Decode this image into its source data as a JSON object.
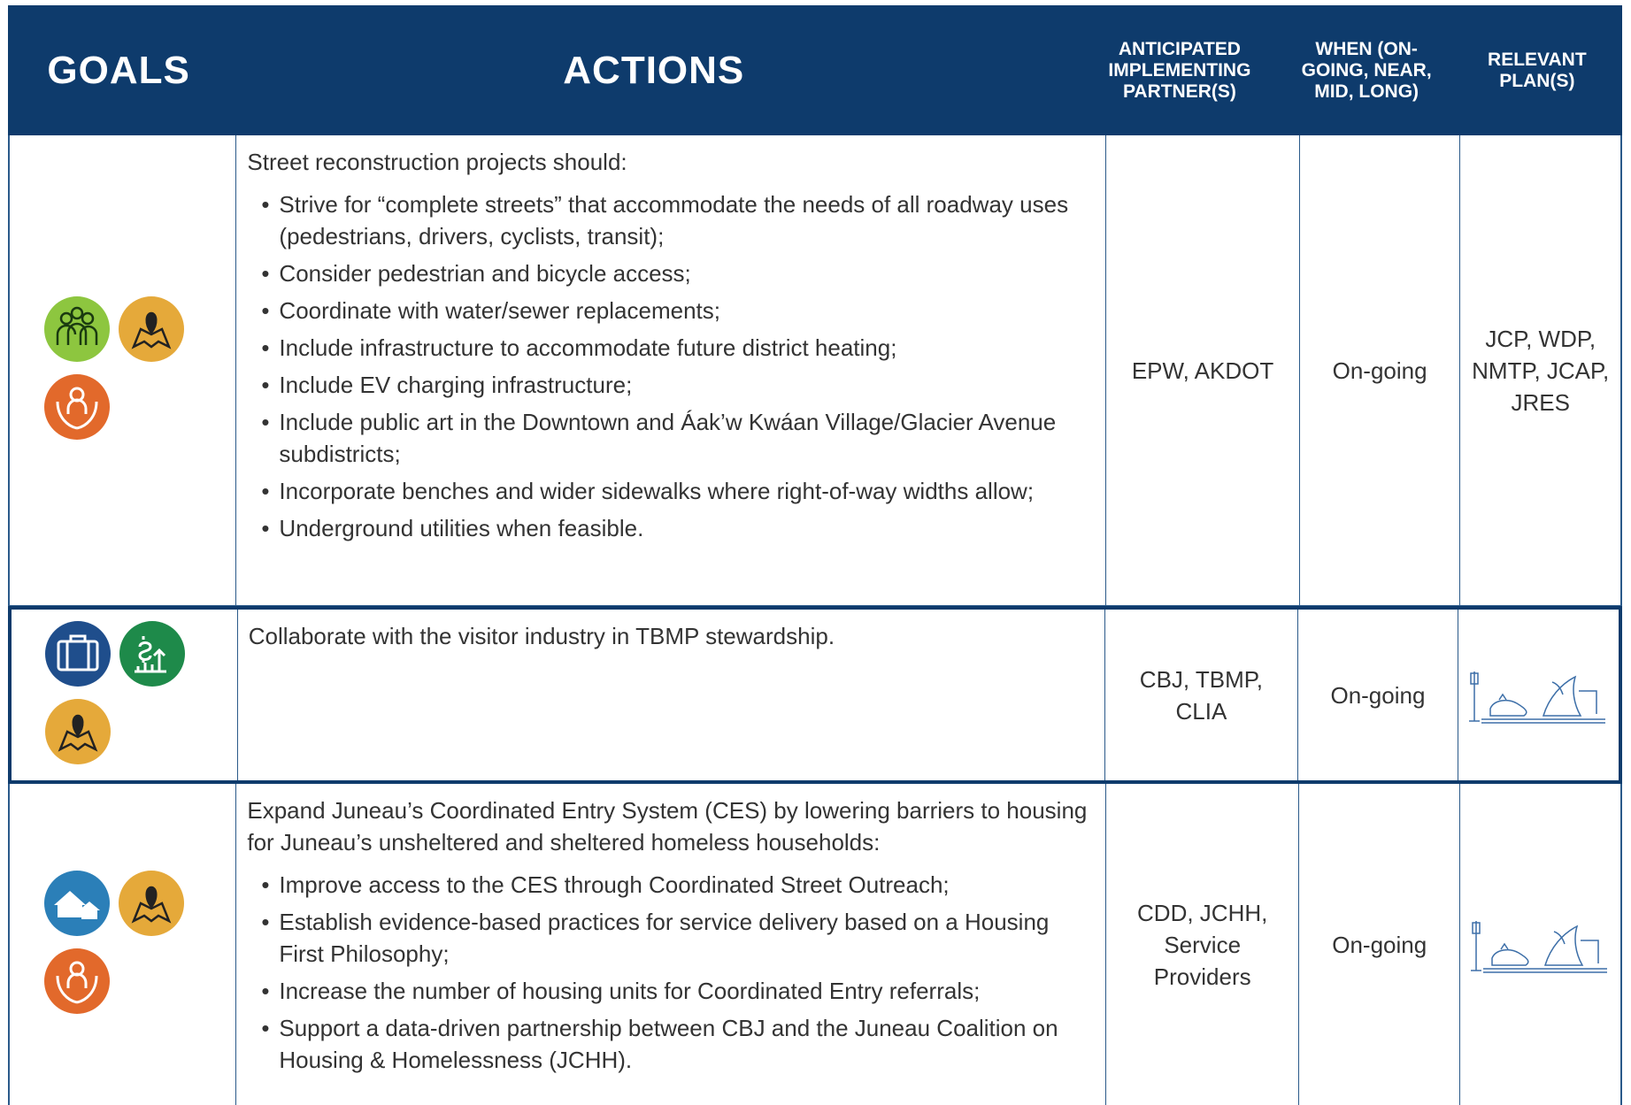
{
  "header": {
    "goals": "GOALS",
    "actions": "ACTIONS",
    "partners": "ANTICIPATED IMPLEMENTING PARTNER(S)",
    "when": "WHEN (ON-GOING, NEAR, MID, LONG)",
    "plans": "RELEVANT PLAN(S)"
  },
  "rows": [
    {
      "intro": "Street reconstruction projects should:",
      "bullets": [
        "Strive for “complete streets” that accommodate the needs of all roadway uses (pedestrians, drivers, cyclists, transit);",
        "Consider pedestrian and bicycle access;",
        "Coordinate with water/sewer replacements;",
        "Include infrastructure to accommodate future district heating;",
        "Include EV charging infrastructure;",
        "Include public art in the Downtown and Áak’w Kwáan Village/Glacier Avenue subdistricts;",
        "Incorporate benches and wider sidewalks where right-of-way widths allow;",
        "Underground utilities when feasible."
      ],
      "partners": "EPW, AKDOT",
      "when": "On-going",
      "plans": "JCP, WDP, NMTP, JCAP, JRES"
    },
    {
      "intro": "Collaborate with the visitor industry in TBMP stewardship.",
      "partners": "CBJ, TBMP, CLIA",
      "when": "On-going"
    },
    {
      "intro": "Expand Juneau’s Coordinated Entry System (CES) by lowering barriers to housing for Juneau’s unsheltered and sheltered homeless households:",
      "bullets": [
        "Improve access to the CES through Coordinated Street Outreach;",
        "Establish evidence-based practices for service delivery based on a Housing First Philosophy;",
        "Increase the number of housing units for Coordinated Entry referrals;",
        "Support a data-driven partnership between CBJ and the Juneau Coalition on Housing & Homelessness (JCHH)."
      ],
      "partners": "CDD, JCHH, Service Providers",
      "when": "On-going"
    }
  ]
}
